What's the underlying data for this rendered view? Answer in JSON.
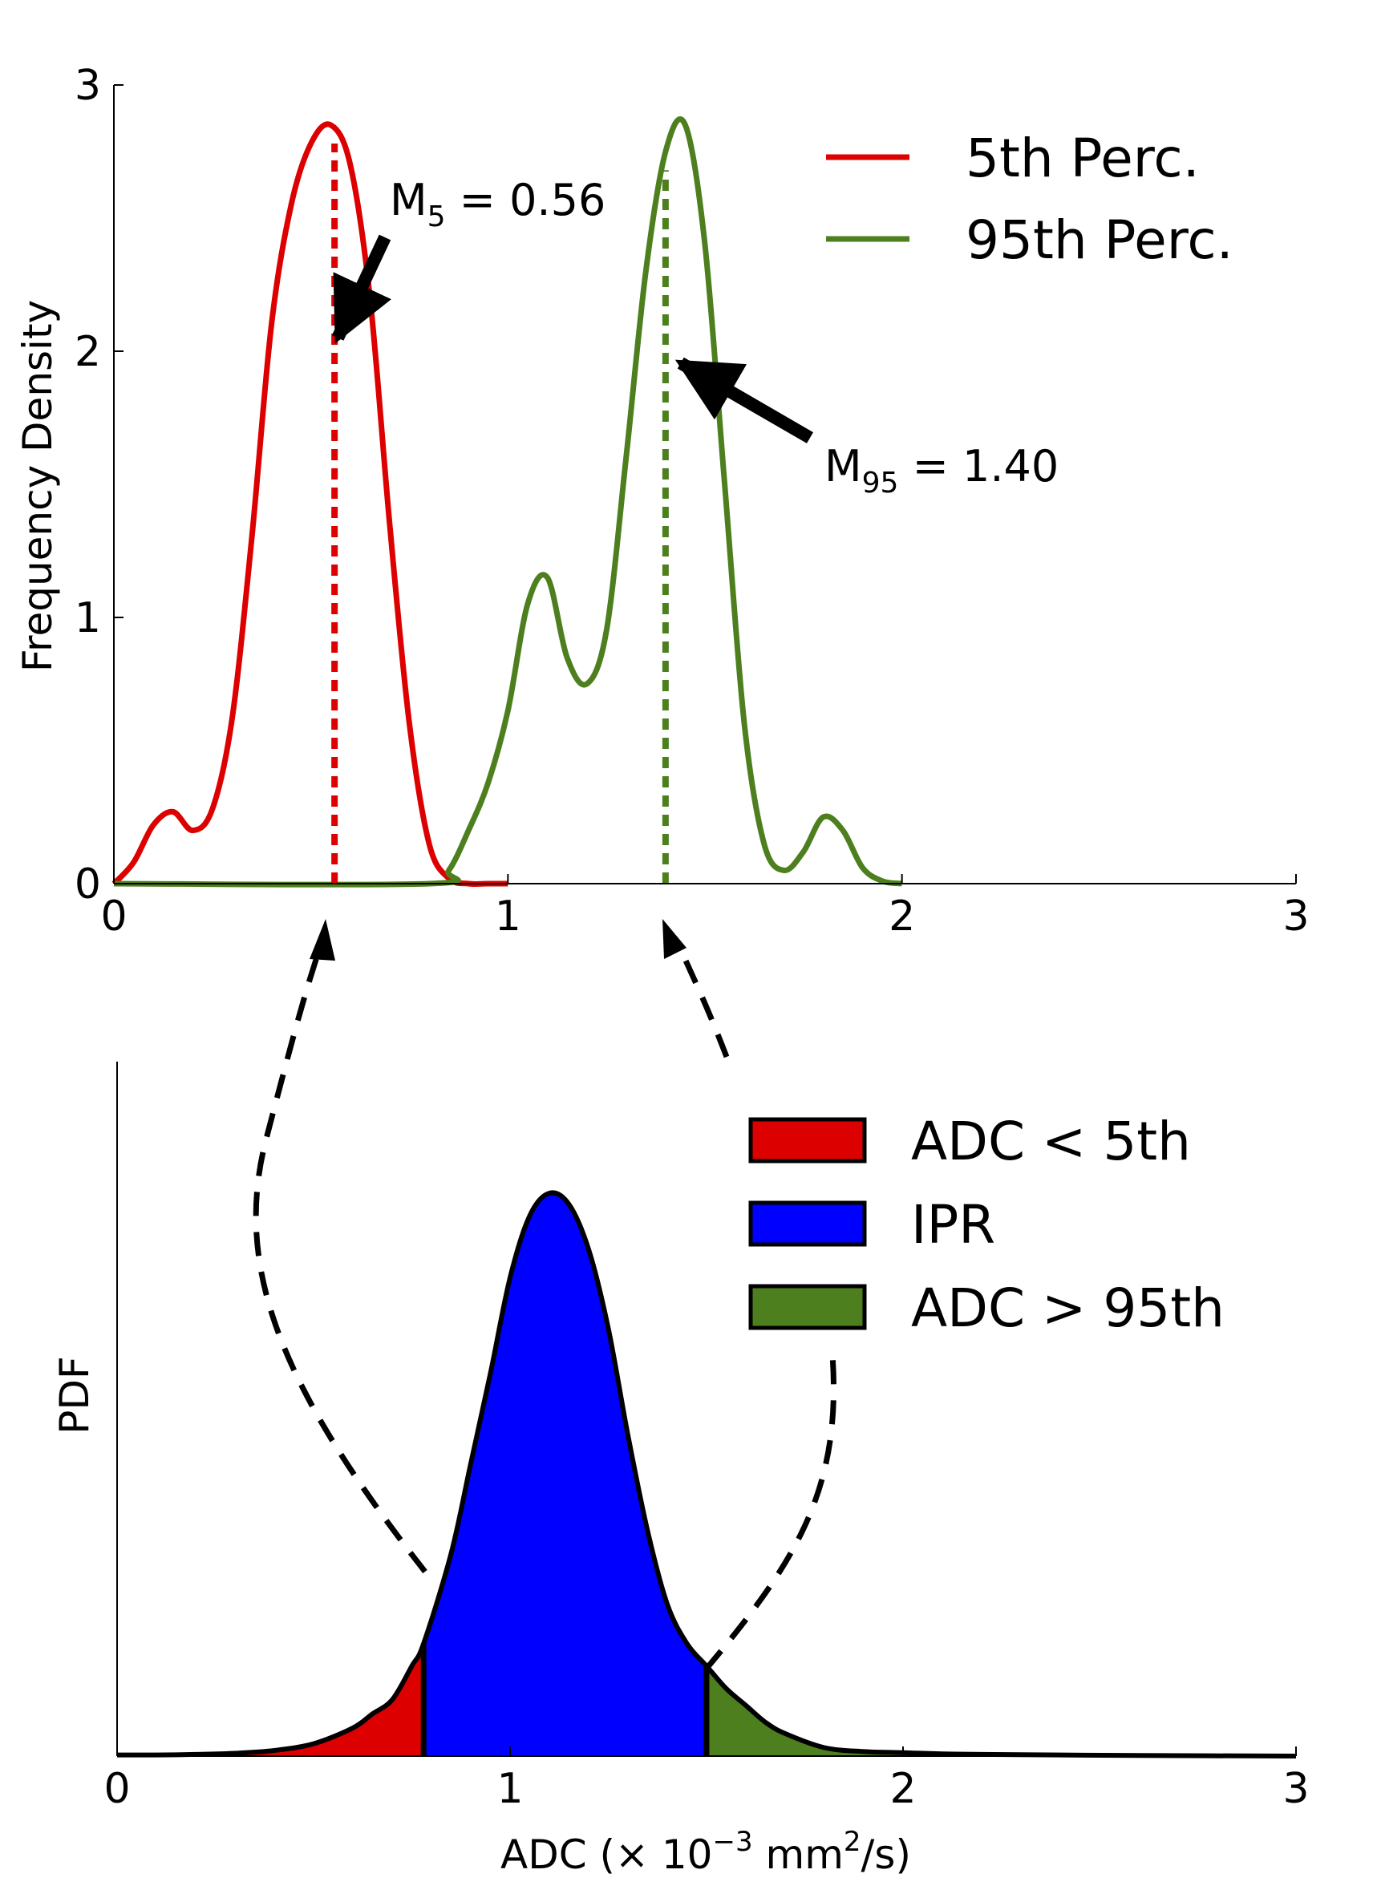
{
  "chart_data": [
    {
      "type": "line",
      "ylabel": "Frequency Density",
      "xlim": [
        0,
        3
      ],
      "ylim": [
        0,
        3
      ],
      "xticks": [
        "0",
        "1",
        "2",
        "3"
      ],
      "yticks": [
        "0",
        "1",
        "2",
        "3"
      ],
      "series": [
        {
          "name": "5th Perc.",
          "color": "#dd0000",
          "x": [
            0.0,
            0.05,
            0.1,
            0.15,
            0.2,
            0.25,
            0.3,
            0.35,
            0.4,
            0.45,
            0.5,
            0.55,
            0.6,
            0.65,
            0.7,
            0.75,
            0.8,
            0.85,
            0.9,
            0.95,
            1.0
          ],
          "values": [
            0.0,
            0.08,
            0.22,
            0.27,
            0.2,
            0.28,
            0.62,
            1.3,
            2.1,
            2.55,
            2.78,
            2.85,
            2.7,
            2.2,
            1.35,
            0.6,
            0.15,
            0.02,
            0.0,
            0.0,
            0.0
          ]
        },
        {
          "name": "95th Perc.",
          "color": "#4d7f1f",
          "x": [
            0.0,
            0.8,
            0.85,
            0.9,
            0.95,
            1.0,
            1.05,
            1.1,
            1.15,
            1.2,
            1.25,
            1.3,
            1.35,
            1.4,
            1.45,
            1.5,
            1.55,
            1.6,
            1.65,
            1.7,
            1.75,
            1.8,
            1.85,
            1.9,
            1.95,
            2.0
          ],
          "values": [
            0.0,
            0.0,
            0.05,
            0.2,
            0.38,
            0.65,
            1.05,
            1.15,
            0.85,
            0.75,
            0.95,
            1.6,
            2.3,
            2.75,
            2.85,
            2.4,
            1.5,
            0.6,
            0.15,
            0.05,
            0.12,
            0.25,
            0.2,
            0.06,
            0.01,
            0.0
          ]
        }
      ],
      "medians": [
        {
          "series": "5th Perc.",
          "x": 0.56,
          "y_top": 2.78
        },
        {
          "series": "95th Perc.",
          "x": 1.4,
          "y_top": 2.68
        }
      ],
      "annotations": [
        {
          "label": "M",
          "sub": "5",
          "text": " = 0.56",
          "target": [
            0.56,
            2.02
          ]
        },
        {
          "label": "M",
          "sub": "95",
          "text": " = 1.40",
          "target": [
            1.41,
            1.98
          ]
        }
      ],
      "legend": "top-right"
    },
    {
      "type": "area",
      "ylabel": "PDF",
      "xlabel": "ADC (× 10⁻³ mm²/s)",
      "xlabel_parts": {
        "pre": "ADC (× 10",
        "exp1": "−3",
        "mid": " mm",
        "exp2": "2",
        "post": "/s)"
      },
      "xlim": [
        0,
        3
      ],
      "xticks": [
        "0",
        "1",
        "2",
        "3"
      ],
      "pdf": {
        "x": [
          0.0,
          0.1,
          0.2,
          0.3,
          0.4,
          0.5,
          0.6,
          0.65,
          0.7,
          0.75,
          0.78,
          0.85,
          0.9,
          0.95,
          1.0,
          1.05,
          1.1,
          1.15,
          1.2,
          1.25,
          1.3,
          1.35,
          1.4,
          1.45,
          1.5,
          1.55,
          1.6,
          1.65,
          1.7,
          1.8,
          1.9,
          2.0,
          2.1,
          2.2,
          2.4,
          2.6,
          3.0
        ],
        "y": [
          0.002,
          0.002,
          0.003,
          0.005,
          0.01,
          0.022,
          0.05,
          0.075,
          0.1,
          0.16,
          0.2,
          0.36,
          0.52,
          0.68,
          0.85,
          0.96,
          1.0,
          0.98,
          0.9,
          0.76,
          0.57,
          0.4,
          0.27,
          0.2,
          0.16,
          0.12,
          0.09,
          0.06,
          0.04,
          0.015,
          0.008,
          0.006,
          0.004,
          0.003,
          0.002,
          0.001,
          0.0
        ]
      },
      "thresholds": [
        0.78,
        1.5
      ],
      "regions": [
        {
          "name": "ADC < 5th",
          "color": "#dd0000"
        },
        {
          "name": "IPR",
          "color": "#0000ff"
        },
        {
          "name": "ADC > 95th",
          "color": "#4d7f1f"
        }
      ],
      "legend": "top-right"
    }
  ]
}
